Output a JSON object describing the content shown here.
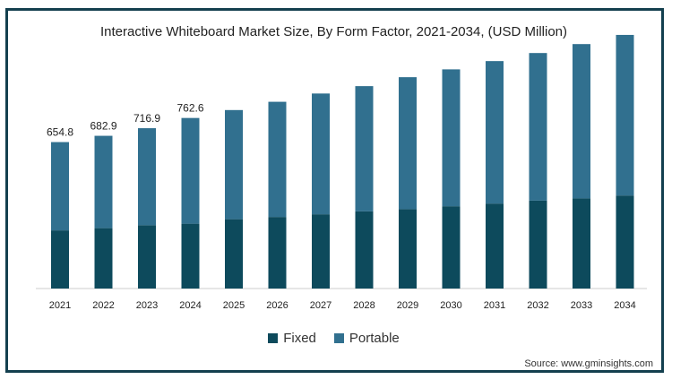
{
  "chart_data": {
    "type": "bar",
    "stacked": true,
    "title": "Interactive Whiteboard Market Size, By Form Factor, 2021-2034, (USD Million)",
    "categories": [
      "2021",
      "2022",
      "2023",
      "2024",
      "2025",
      "2026",
      "2027",
      "2028",
      "2029",
      "2030",
      "2031",
      "2032",
      "2033",
      "2034"
    ],
    "series": [
      {
        "name": "Fixed",
        "color": "#0d4a5c",
        "values": [
          260,
          270,
          283,
          290,
          310,
          320,
          332,
          345,
          355,
          368,
          380,
          393,
          403,
          416
        ]
      },
      {
        "name": "Portable",
        "color": "#31708f",
        "values": [
          394.8,
          412.9,
          433.9,
          472.6,
          488,
          515,
          540,
          560,
          590,
          612,
          637,
          660,
          690,
          718
        ]
      }
    ],
    "totals_labels": [
      "654.8",
      "682.9",
      "716.9",
      "762.6"
    ],
    "ylim": [
      0,
      1250
    ],
    "legend_position": "bottom",
    "grid": false
  },
  "source": "Source: www.gminsights.com"
}
